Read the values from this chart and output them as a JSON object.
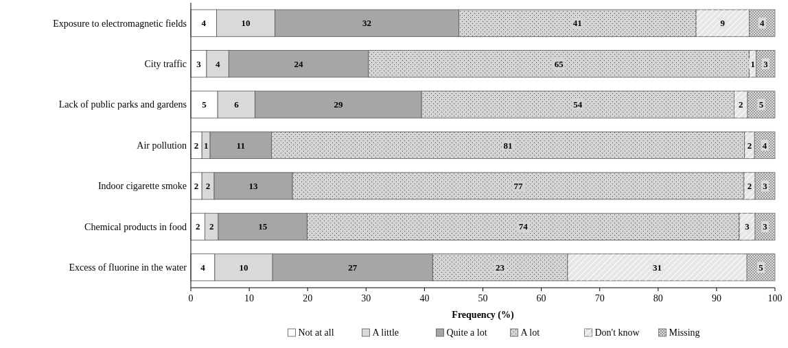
{
  "chart_data": {
    "type": "bar",
    "orientation": "horizontal",
    "stacked": true,
    "xlabel": "Frequency (%)",
    "categories": [
      "Exposure to electromagnetic fields",
      "City traffic",
      "Lack of public parks and gardens",
      "Air pollution",
      "Indoor cigarette smoke",
      "Chemical products in food",
      "Excess of fluorine in the water"
    ],
    "series": [
      {
        "name": "Not at all",
        "color": "#ffffff",
        "values": [
          4.4,
          2.7,
          4.6,
          1.9,
          1.9,
          2.4,
          4.1
        ],
        "value_labels": [
          "4",
          "3",
          "5",
          "2",
          "2",
          "2",
          "4"
        ]
      },
      {
        "name": "A little",
        "color": "#d9d9d9",
        "values": [
          10.0,
          3.8,
          6.4,
          1.4,
          2.1,
          2.3,
          9.9
        ],
        "value_labels": [
          "10",
          "4",
          "6",
          "1",
          "2",
          "2",
          "10"
        ]
      },
      {
        "name": "Quite a lot",
        "color": "#a6a6a6",
        "values": [
          31.5,
          23.9,
          28.5,
          10.5,
          13.4,
          15.2,
          27.4
        ],
        "value_labels": [
          "32",
          "24",
          "29",
          "11",
          "13",
          "15",
          "27"
        ]
      },
      {
        "name": "A lot",
        "color": "#d4d4d4",
        "values": [
          40.6,
          65.2,
          53.5,
          81.0,
          77.3,
          74.0,
          23.1
        ],
        "value_labels": [
          "41",
          "65",
          "54",
          "81",
          "77",
          "74",
          "23"
        ]
      },
      {
        "name": "Don't know",
        "color": "#e6e6e6",
        "values": [
          9.1,
          1.2,
          2.3,
          1.7,
          1.9,
          2.7,
          30.7
        ],
        "value_labels": [
          "9",
          "1",
          "2",
          "2",
          "2",
          "3",
          "31"
        ]
      },
      {
        "name": "Missing",
        "color": "#dcdcdc",
        "values": [
          4.4,
          3.2,
          4.7,
          3.5,
          3.4,
          3.4,
          4.8
        ],
        "value_labels": [
          "4",
          "3",
          "5",
          "4",
          "3",
          "3",
          "5"
        ]
      }
    ],
    "xlim": [
      0,
      100
    ],
    "xticks": [
      0,
      10,
      20,
      30,
      40,
      50,
      60,
      70,
      80,
      90,
      100
    ],
    "grid": false,
    "legend": "bottom"
  }
}
